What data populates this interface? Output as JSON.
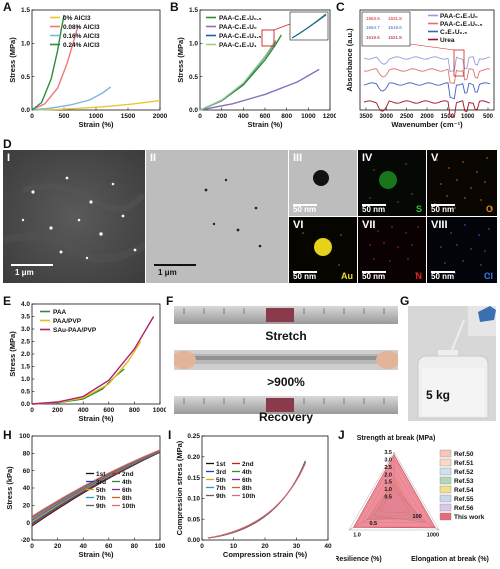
{
  "panel_letters": [
    "A",
    "B",
    "C",
    "D",
    "E",
    "F",
    "G",
    "H",
    "I",
    "J"
  ],
  "chart_data": [
    {
      "id": "A",
      "type": "line",
      "xlabel": "Strain (%)",
      "ylabel": "Stress (MPa)",
      "xlim": [
        0,
        2000
      ],
      "ylim": [
        0,
        1.6
      ],
      "xticks": [
        "0",
        "500",
        "1000",
        "1500",
        "2000"
      ],
      "yticks": [
        "0.0",
        "0.5",
        "1.0",
        "1.5"
      ],
      "series": [
        {
          "name": "0% AlCl3",
          "color": "#e8c832",
          "x": [
            0,
            400,
            800,
            1200,
            1600,
            2000
          ],
          "y": [
            0,
            0.01,
            0.03,
            0.06,
            0.1,
            0.15
          ]
        },
        {
          "name": "0.08% AlCl3",
          "color": "#f07878",
          "x": [
            0,
            200,
            400,
            550,
            650,
            720
          ],
          "y": [
            0,
            0.1,
            0.35,
            0.75,
            1.1,
            1.35
          ]
        },
        {
          "name": "0.16% AlCl3",
          "color": "#78b8e0",
          "x": [
            0,
            300,
            600,
            900,
            1100,
            1230
          ],
          "y": [
            0,
            0.03,
            0.08,
            0.16,
            0.27,
            0.37
          ]
        },
        {
          "name": "0.24% AlCl3",
          "color": "#2e8b3a",
          "x": [
            0,
            150,
            300,
            400,
            460,
            500
          ],
          "y": [
            0,
            0.12,
            0.5,
            0.95,
            1.3,
            1.52
          ]
        }
      ]
    },
    {
      "id": "B",
      "type": "line",
      "xlabel": "Strain (%)",
      "ylabel": "Stress (MPa)",
      "xlim": [
        0,
        1200
      ],
      "ylim": [
        0,
        1.6
      ],
      "xticks": [
        "0",
        "200",
        "400",
        "600",
        "800",
        "1000",
        "1200"
      ],
      "yticks": [
        "0.0",
        "0.5",
        "1.0",
        "1.5"
      ],
      "series": [
        {
          "name": "PAA-C₁E₄U₀.₅",
          "color": "#2e8b3a",
          "x": [
            0,
            200,
            400,
            600,
            700,
            750
          ],
          "y": [
            0,
            0.15,
            0.4,
            0.8,
            1.05,
            1.2
          ]
        },
        {
          "name": "PAA-C₁E₄U₀",
          "color": "#8a6ec0",
          "x": [
            0,
            300,
            600,
            900,
            1100
          ],
          "y": [
            0,
            0.1,
            0.25,
            0.45,
            0.65
          ]
        },
        {
          "name": "PAA-C₁E₄U₁.₅",
          "color": "#1e5ea8",
          "x": [
            0,
            200,
            400,
            600,
            700
          ],
          "y": [
            0,
            0.15,
            0.42,
            0.85,
            1.1
          ]
        },
        {
          "name": "PAA-C₁E₄U₁",
          "color": "#9ed080",
          "x": [
            0,
            200,
            400,
            600,
            700
          ],
          "y": [
            0,
            0.16,
            0.43,
            0.86,
            1.12
          ]
        }
      ]
    },
    {
      "id": "C",
      "type": "line",
      "xlabel": "Wavenumber (cm⁻¹)",
      "ylabel": "Absorbance (a.u.)",
      "xticks": [
        "3500",
        "3000",
        "2500",
        "2000",
        "1500",
        "1000",
        "500"
      ],
      "series": [
        {
          "name": "PAA-C₁E₄U₀",
          "color": "#8fa0d8"
        },
        {
          "name": "PAA-C₁E₄U₀.₅",
          "color": "#e07070"
        },
        {
          "name": "C₁E₄U₀.₅",
          "color": "#4060c0"
        },
        {
          "name": "Urea",
          "color": "#a01020"
        }
      ],
      "annotations": [
        "1663.6",
        "1631.8",
        "1664.7",
        "1618.6",
        "1619.6",
        "1621.8"
      ]
    },
    {
      "id": "E",
      "type": "line",
      "xlabel": "Strain (%)",
      "ylabel": "Stress (MPa)",
      "xlim": [
        0,
        1000
      ],
      "ylim": [
        0,
        4.0
      ],
      "xticks": [
        "0",
        "200",
        "400",
        "600",
        "800",
        "1000"
      ],
      "yticks": [
        "0.0",
        "0.5",
        "1.0",
        "1.5",
        "2.0",
        "2.5",
        "3.0",
        "3.5",
        "4.0"
      ],
      "series": [
        {
          "name": "PAA",
          "color": "#2e8b3a",
          "x": [
            0,
            200,
            400,
            550,
            650,
            720
          ],
          "y": [
            0,
            0.05,
            0.2,
            0.6,
            1.1,
            1.4
          ]
        },
        {
          "name": "PAA/PVP",
          "color": "#e0c020",
          "x": [
            0,
            200,
            400,
            600,
            750,
            850
          ],
          "y": [
            0,
            0.06,
            0.25,
            0.8,
            1.7,
            2.5
          ]
        },
        {
          "name": "SAu-PAA/PVP",
          "color": "#b0206a",
          "x": [
            0,
            200,
            400,
            600,
            800,
            950
          ],
          "y": [
            0,
            0.08,
            0.3,
            0.95,
            2.2,
            3.5
          ]
        }
      ]
    },
    {
      "id": "H",
      "type": "line",
      "xlabel": "Strain (%)",
      "ylabel": "Stress (kPa)",
      "xlim": [
        0,
        100
      ],
      "ylim": [
        -20,
        100
      ],
      "xticks": [
        "0",
        "20",
        "40",
        "60",
        "80",
        "100"
      ],
      "yticks": [
        "-20",
        "0",
        "20",
        "40",
        "60",
        "80",
        "100"
      ],
      "series": [
        {
          "name": "1st"
        },
        {
          "name": "2nd"
        },
        {
          "name": "3rd"
        },
        {
          "name": "4th"
        },
        {
          "name": "5th"
        },
        {
          "name": "6th"
        },
        {
          "name": "7th"
        },
        {
          "name": "8th"
        },
        {
          "name": "9th"
        },
        {
          "name": "10th"
        }
      ]
    },
    {
      "id": "I",
      "type": "line",
      "xlabel": "Compression strain (%)",
      "ylabel": "Compression stress (MPa)",
      "xlim": [
        0,
        40
      ],
      "ylim": [
        0,
        0.25
      ],
      "xticks": [
        "0",
        "10",
        "20",
        "30",
        "40"
      ],
      "yticks": [
        "0.00",
        "0.05",
        "0.10",
        "0.15",
        "0.20",
        "0.25"
      ],
      "series": [
        {
          "name": "1st"
        },
        {
          "name": "2nd"
        },
        {
          "name": "3rd"
        },
        {
          "name": "4th"
        },
        {
          "name": "5th"
        },
        {
          "name": "6th"
        },
        {
          "name": "7th"
        },
        {
          "name": "8th"
        },
        {
          "name": "9th"
        },
        {
          "name": "10th"
        }
      ]
    },
    {
      "id": "J",
      "type": "radar",
      "axes": [
        "Strength at break (MPa)",
        "Elongation at break (%)",
        "Resilience (%)"
      ],
      "ticks_strength": [
        "0.5",
        "1.0",
        "1.5",
        "2.0",
        "2.5",
        "3.0",
        "3.5"
      ],
      "ticks_elong": [
        "100",
        "1000"
      ],
      "ticks_res": [
        "1.0",
        "0.5"
      ],
      "series": [
        {
          "name": "Ref.50",
          "color": "#f6c7b6"
        },
        {
          "name": "Ref.51",
          "color": "#f9d9c4"
        },
        {
          "name": "Ref.52",
          "color": "#cfe0f0"
        },
        {
          "name": "Ref.53",
          "color": "#b7d6b7"
        },
        {
          "name": "Ref.54",
          "color": "#f2e08a"
        },
        {
          "name": "Ref.55",
          "color": "#c8d7ec"
        },
        {
          "name": "Ref.56",
          "color": "#d9c7ec"
        },
        {
          "name": "This work",
          "color": "#e86a7a"
        }
      ]
    }
  ],
  "micro": {
    "tiles": [
      "I",
      "II",
      "III",
      "IV",
      "V",
      "VI",
      "VII",
      "VIII"
    ],
    "scale_1um": "1 μm",
    "scale_50nm": "50 nm",
    "elements": {
      "IV": "S",
      "V": "O",
      "VI": "Au",
      "VII": "N",
      "VIII": "Cl"
    }
  },
  "photos": {
    "stretch": "Stretch",
    "ratio": ">900%",
    "recovery": "Recovery",
    "weight": "5 kg"
  }
}
